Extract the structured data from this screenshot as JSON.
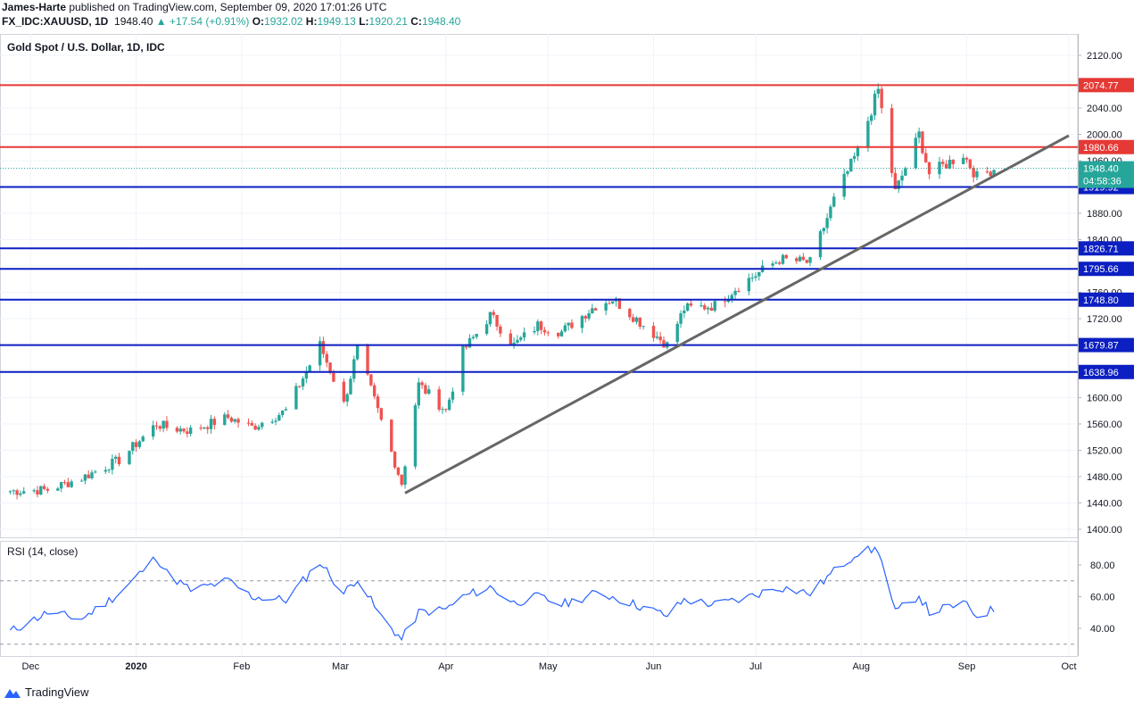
{
  "header": {
    "author": "James-Harte",
    "published": " published on TradingView.com, September 09, 2020 17:01:26 UTC",
    "symbol": "FX_IDC:XAUUSD, 1D",
    "last": "1948.40",
    "change": "▲ +17.54 (+0.91%)",
    "o_label": "O:",
    "o": "1932.02",
    "h_label": "H:",
    "h": "1949.13",
    "l_label": "L:",
    "l": "1920.21",
    "c_label": "C:",
    "c": "1948.40"
  },
  "colors": {
    "up": "#26a69a",
    "down": "#ef5350",
    "support": "#0c1fc2",
    "resistance": "#e53935",
    "trend": "#666666",
    "rsi": "#2962ff",
    "price_tag": "#26a69a"
  },
  "chart_data": [
    {
      "type": "candlestick",
      "title": "Gold Spot / U.S. Dollar, 1D, IDC",
      "y_axis_ticks": [
        2120,
        2080,
        2040,
        2000,
        1960,
        1920,
        1880,
        1840,
        1800,
        1760,
        1720,
        1680,
        1640,
        1600,
        1560,
        1520,
        1480,
        1440,
        1400
      ],
      "ylim": [
        1388,
        2150
      ],
      "x_axis_labels": [
        "Dec",
        "2020",
        "Feb",
        "Mar",
        "Apr",
        "May",
        "Jun",
        "Jul",
        "Aug",
        "Sep",
        "Oct"
      ],
      "resistance_levels": [
        "2074.77",
        "1980.66"
      ],
      "support_levels": [
        "1919.92",
        "1826.71",
        "1795.66",
        "1748.80",
        "1679.87",
        "1638.96"
      ],
      "current_price": "1948.40",
      "countdown": "04:58:36",
      "trendline": [
        {
          "date": "2020-03-20",
          "price": 1455
        },
        {
          "date": "2020-10-01",
          "price": 1998
        }
      ],
      "ohlc_anchors": [
        [
          "2019-11-25",
          1458
        ],
        [
          "2019-12-06",
          1460
        ],
        [
          "2019-12-16",
          1478
        ],
        [
          "2019-12-27",
          1505
        ],
        [
          "2020-01-07",
          1560
        ],
        [
          "2020-01-10",
          1555
        ],
        [
          "2020-01-17",
          1550
        ],
        [
          "2020-01-28",
          1570
        ],
        [
          "2020-02-04",
          1555
        ],
        [
          "2020-02-14",
          1580
        ],
        [
          "2020-02-24",
          1680
        ],
        [
          "2020-03-02",
          1590
        ],
        [
          "2020-03-06",
          1675
        ],
        [
          "2020-03-12",
          1580
        ],
        [
          "2020-03-19",
          1470
        ],
        [
          "2020-03-24",
          1620
        ],
        [
          "2020-04-01",
          1580
        ],
        [
          "2020-04-06",
          1670
        ],
        [
          "2020-04-14",
          1725
        ],
        [
          "2020-04-21",
          1680
        ],
        [
          "2020-04-28",
          1710
        ],
        [
          "2020-05-05",
          1700
        ],
        [
          "2020-05-15",
          1740
        ],
        [
          "2020-05-20",
          1750
        ],
        [
          "2020-06-05",
          1680
        ],
        [
          "2020-06-10",
          1735
        ],
        [
          "2020-06-19",
          1740
        ],
        [
          "2020-06-26",
          1770
        ],
        [
          "2020-07-08",
          1810
        ],
        [
          "2020-07-17",
          1805
        ],
        [
          "2020-07-24",
          1900
        ],
        [
          "2020-07-31",
          1975
        ],
        [
          "2020-08-06",
          2068
        ],
        [
          "2020-08-11",
          1912
        ],
        [
          "2020-08-18",
          2000
        ],
        [
          "2020-08-21",
          1940
        ],
        [
          "2020-08-31",
          1970
        ],
        [
          "2020-09-04",
          1935
        ],
        [
          "2020-09-09",
          1948
        ]
      ]
    },
    {
      "type": "line",
      "title": "RSI (14, close)",
      "y_axis_ticks": [
        80,
        60,
        40
      ],
      "ylim": [
        27,
        93
      ],
      "bands": [
        70,
        30
      ],
      "series": [
        {
          "values_anchors": [
            [
              "2019-11-25",
              38
            ],
            [
              "2019-12-06",
              50
            ],
            [
              "2019-12-16",
              46
            ],
            [
              "2019-12-27",
              62
            ],
            [
              "2020-01-07",
              85
            ],
            [
              "2020-01-10",
              75
            ],
            [
              "2020-01-17",
              64
            ],
            [
              "2020-01-28",
              70
            ],
            [
              "2020-02-04",
              60
            ],
            [
              "2020-02-14",
              58
            ],
            [
              "2020-02-24",
              82
            ],
            [
              "2020-03-02",
              62
            ],
            [
              "2020-03-06",
              72
            ],
            [
              "2020-03-12",
              50
            ],
            [
              "2020-03-19",
              33
            ],
            [
              "2020-03-24",
              50
            ],
            [
              "2020-04-01",
              52
            ],
            [
              "2020-04-06",
              60
            ],
            [
              "2020-04-14",
              66
            ],
            [
              "2020-04-21",
              56
            ],
            [
              "2020-04-28",
              60
            ],
            [
              "2020-05-05",
              55
            ],
            [
              "2020-05-15",
              62
            ],
            [
              "2020-05-20",
              60
            ],
            [
              "2020-06-05",
              48
            ],
            [
              "2020-06-10",
              58
            ],
            [
              "2020-06-19",
              55
            ],
            [
              "2020-06-26",
              58
            ],
            [
              "2020-07-08",
              66
            ],
            [
              "2020-07-17",
              62
            ],
            [
              "2020-07-24",
              76
            ],
            [
              "2020-07-31",
              88
            ],
            [
              "2020-08-06",
              90
            ],
            [
              "2020-08-11",
              50
            ],
            [
              "2020-08-18",
              61
            ],
            [
              "2020-08-21",
              50
            ],
            [
              "2020-08-31",
              56
            ],
            [
              "2020-09-04",
              48
            ],
            [
              "2020-09-09",
              52
            ]
          ]
        }
      ]
    }
  ],
  "footer": {
    "brand": "TradingView"
  }
}
